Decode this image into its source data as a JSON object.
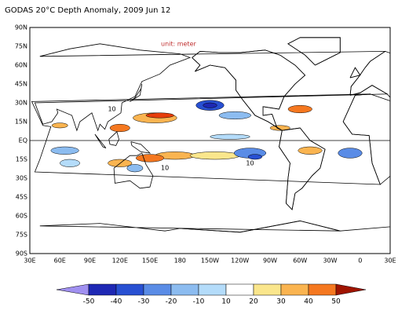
{
  "title": "GODAS 20°C Depth Anomaly, 2009 Jun 12",
  "unit_label": "unit: meter",
  "lat_labels": [
    "90N",
    "75N",
    "60N",
    "45N",
    "30N",
    "15N",
    "EQ",
    "15S",
    "30S",
    "45S",
    "60S",
    "75S",
    "90S"
  ],
  "lon_labels": [
    "30E",
    "60E",
    "90E",
    "120E",
    "150E",
    "180",
    "150W",
    "120W",
    "90W",
    "60W",
    "30W",
    "0",
    "30E"
  ],
  "colorbar": {
    "levels": [
      -50,
      -40,
      -30,
      -20,
      -10,
      10,
      20,
      30,
      40,
      50
    ],
    "colors": [
      "#a090f0",
      "#1e28b4",
      "#2850d2",
      "#5a8ce6",
      "#8cbcf0",
      "#b4dcfa",
      "#ffffff",
      "#fae68c",
      "#fab450",
      "#f57820",
      "#e63c0a",
      "#a01400"
    ]
  },
  "contour_labels": [
    "10",
    "10",
    "10"
  ]
}
